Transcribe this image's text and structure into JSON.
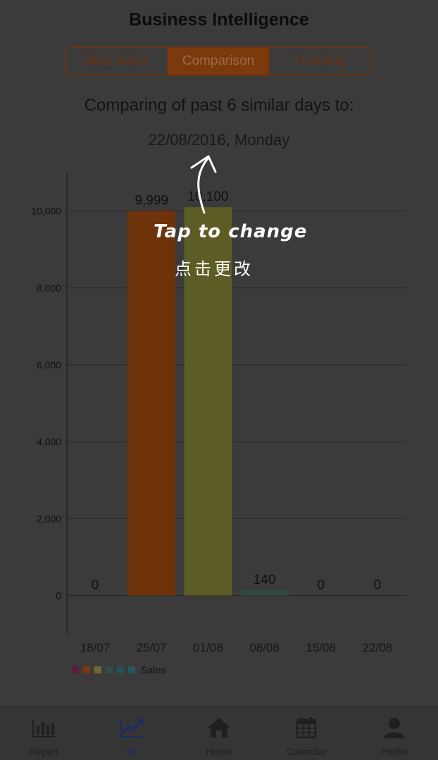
{
  "header": {
    "title": "Business Intelligence"
  },
  "segments": [
    {
      "label": "Best Sales",
      "active": false
    },
    {
      "label": "Comparison",
      "active": true
    },
    {
      "label": "Trending",
      "active": false
    }
  ],
  "subtitle": "Comparing of past 6 similar days to:",
  "selected_date": "22/08/2016, Monday",
  "overlay": {
    "hint_en": "Tap to change",
    "hint_cn": "点击更改"
  },
  "chart_data": {
    "type": "bar",
    "categories": [
      "18/07",
      "25/07",
      "01/08",
      "08/08",
      "15/08",
      "22/08"
    ],
    "series": [
      {
        "name": "Sales",
        "values": [
          0,
          9999,
          10100,
          140,
          0,
          0
        ]
      }
    ],
    "value_labels": [
      "0",
      "9,999",
      "10,100",
      "140",
      "0",
      "0"
    ],
    "bar_colors": [
      "#4a1430",
      "#6e3308",
      "#5c5c24",
      "#2f4a40",
      "#24494c",
      "#2a4f52"
    ],
    "yticks": [
      0,
      2000,
      4000,
      6000,
      8000,
      10000
    ],
    "ytick_labels": [
      "0",
      "2,000",
      "4,000",
      "6,000",
      "8,000",
      "10,000"
    ],
    "ylim": [
      -1000,
      11000
    ],
    "grid": true,
    "legend": {
      "placement": "bottom-left",
      "label": "Sales",
      "swatches": [
        "#5a1f3a",
        "#7a3a0c",
        "#6e6a2a",
        "#2e5048",
        "#215457",
        "#1f5a5e"
      ]
    }
  },
  "tabbar": [
    {
      "label": "Report",
      "icon": "bar-chart-icon",
      "active": false
    },
    {
      "label": "BI",
      "icon": "trend-line-icon",
      "active": true
    },
    {
      "label": "Home",
      "icon": "home-icon",
      "active": false
    },
    {
      "label": "Calendar",
      "icon": "calendar-icon",
      "active": false
    },
    {
      "label": "Profile",
      "icon": "user-icon",
      "active": false
    }
  ],
  "colors": {
    "accent": "#7a3a0c",
    "active_tab": "#1a2b6b"
  }
}
